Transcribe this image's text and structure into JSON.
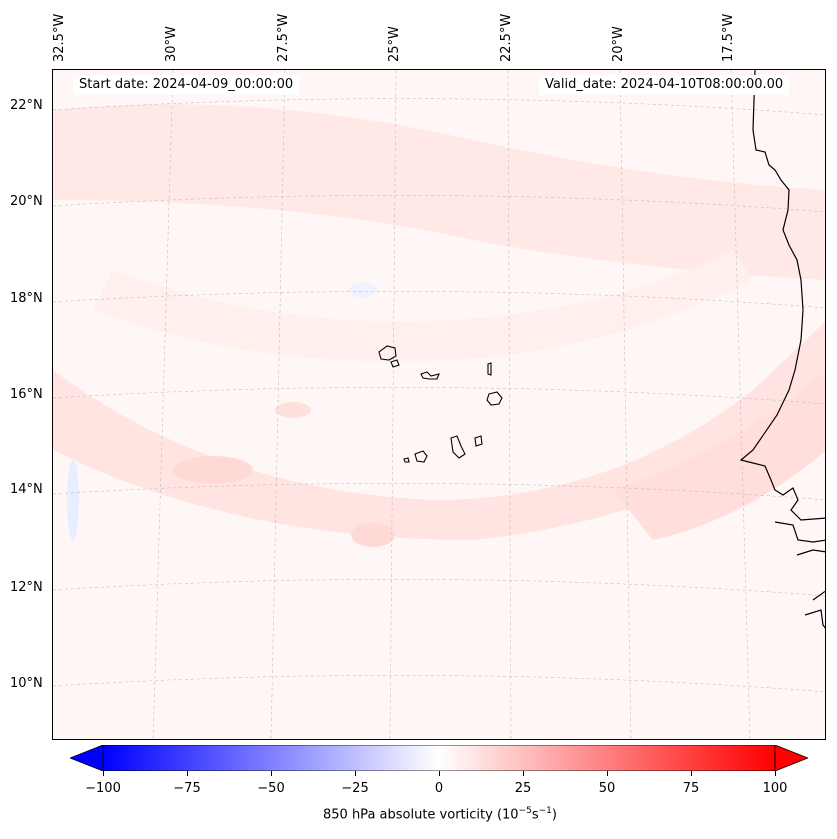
{
  "map": {
    "start_date": "Start date: 2024-04-09_00:00:00",
    "valid_date": "Valid_date: 2024-04-10T08:00:00.00",
    "lon_labels": [
      "32.5°W",
      "30°W",
      "27.5°W",
      "25°W",
      "22.5°W",
      "20°W",
      "17.5°W"
    ],
    "lat_labels": [
      "22°N",
      "20°N",
      "18°N",
      "16°N",
      "14°N",
      "12°N",
      "10°N"
    ]
  },
  "colorbar": {
    "label_text": "850 hPa absolute vorticity (10",
    "label_exp1": "−5",
    "label_mid": "s",
    "label_exp2": "−1",
    "label_end": ")",
    "ticks": [
      "−100",
      "−75",
      "−50",
      "−25",
      "0",
      "25",
      "50",
      "75",
      "100"
    ],
    "min": -100,
    "max": 100,
    "color_low": "#0000ff",
    "color_mid": "#ffffff",
    "color_high": "#ff0000"
  }
}
